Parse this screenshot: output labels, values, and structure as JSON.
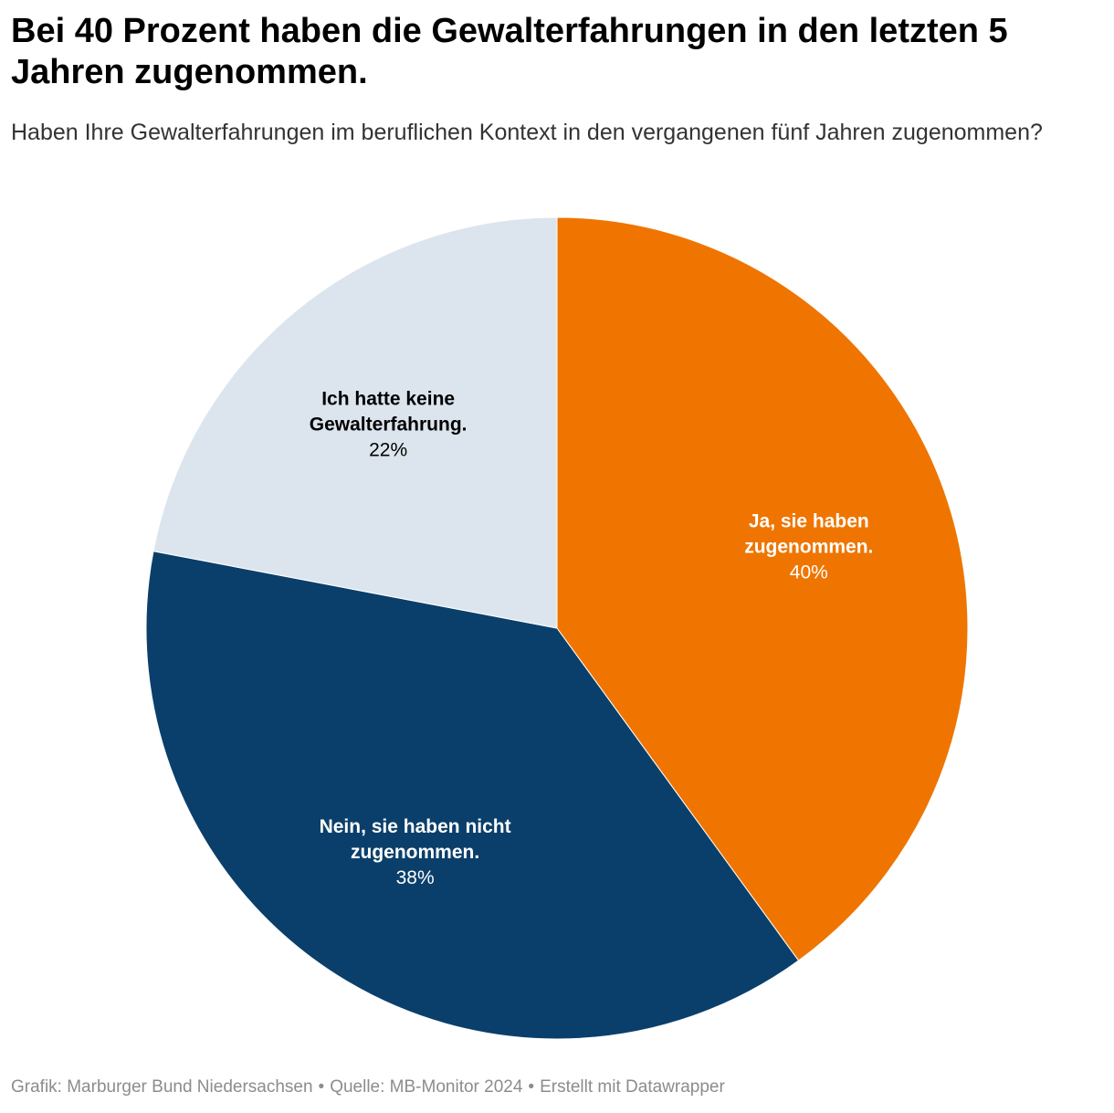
{
  "title": "Bei 40 Prozent haben die Gewalterfahrungen in den letzten 5 Jahren zugenommen.",
  "subtitle": "Haben Ihre Gewalterfahrungen im beruflichen Kontext in den vergangenen fünf Jahren zugenommen?",
  "footer": {
    "grafik": "Grafik: Marburger Bund Niedersachsen",
    "separator": "•",
    "quelle": "Quelle: MB-Monitor 2024",
    "erstellt": "Erstellt mit Datawrapper"
  },
  "chart_data": {
    "type": "pie",
    "slices": [
      {
        "label_lines": [
          "Ja, sie haben",
          "zugenommen."
        ],
        "value": 40,
        "value_label": "40%",
        "color": "#ef7500",
        "text_color": "#ffffff"
      },
      {
        "label_lines": [
          "Nein, sie haben nicht",
          "zugenommen."
        ],
        "value": 38,
        "value_label": "38%",
        "color": "#0a3f6b",
        "text_color": "#ffffff"
      },
      {
        "label_lines": [
          "Ich hatte keine",
          "Gewalterfahrung."
        ],
        "value": 22,
        "value_label": "22%",
        "color": "#dce5ee",
        "text_color": "#000000"
      }
    ],
    "start": "12 o'clock",
    "direction": "clockwise",
    "legend": "none"
  }
}
